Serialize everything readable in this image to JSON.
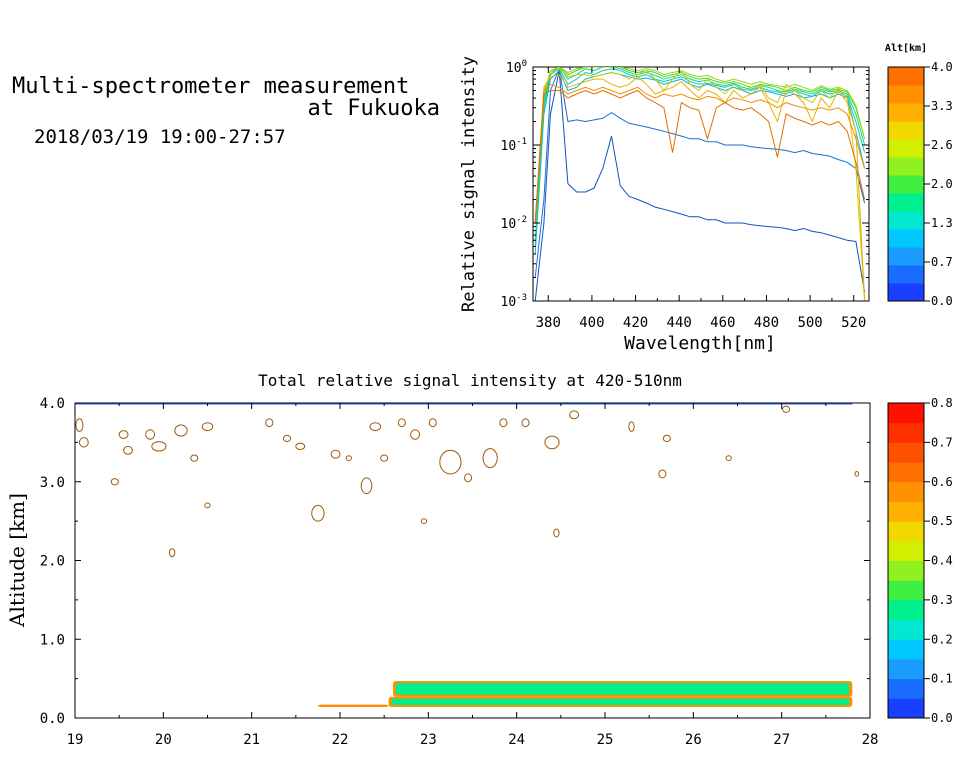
{
  "header": {
    "title_line1": "Multi-spectrometer measurement",
    "title_line2": "at Fukuoka",
    "subtitle": "2018/03/19 19:00-27:57"
  },
  "chart_data": [
    {
      "type": "line",
      "xlabel": "Wavelength[nm]",
      "ylabel": "Relative signal intensity",
      "yscale": "log",
      "xlim": [
        373,
        527
      ],
      "ylim": [
        0.001,
        1
      ],
      "x_ticks": [
        380,
        400,
        420,
        440,
        460,
        480,
        500,
        520
      ],
      "y_tick_labels": [
        {
          "value": 1,
          "base": "10",
          "exp": "0"
        },
        {
          "value": 0.1,
          "base": "10",
          "exp": "-1"
        },
        {
          "value": 0.01,
          "base": "10",
          "exp": "-2"
        },
        {
          "value": 0.001,
          "base": "10",
          "exp": "-3"
        }
      ],
      "x": [
        374,
        378,
        381,
        385,
        389,
        393,
        397,
        401,
        405,
        409,
        413,
        417,
        421,
        425,
        429,
        433,
        437,
        441,
        445,
        449,
        453,
        457,
        461,
        465,
        469,
        473,
        477,
        481,
        485,
        489,
        493,
        497,
        501,
        505,
        509,
        513,
        517,
        521,
        525
      ],
      "colorbar": {
        "title": "Alt[km]",
        "tick_labels": [
          "0.0",
          "0.7",
          "1.3",
          "2.0",
          "2.6",
          "3.3",
          "4.0"
        ],
        "colors": [
          "#1a40ff",
          "#1a6cff",
          "#1a9cff",
          "#00c8ff",
          "#00e8d0",
          "#00f090",
          "#40f040",
          "#90f020",
          "#d0f000",
          "#f0d800",
          "#ffb000",
          "#ff9000",
          "#ff7000"
        ]
      },
      "series": [
        {
          "alt": 0.2,
          "color": "#1450c0",
          "values": [
            0.001,
            0.01,
            0.25,
            0.9,
            0.032,
            0.025,
            0.025,
            0.028,
            0.05,
            0.13,
            0.03,
            0.022,
            0.02,
            0.018,
            0.016,
            0.015,
            0.014,
            0.013,
            0.012,
            0.012,
            0.011,
            0.011,
            0.01,
            0.01,
            0.01,
            0.0095,
            0.0092,
            0.009,
            0.0088,
            0.0085,
            0.008,
            0.0085,
            0.0078,
            0.0075,
            0.007,
            0.0065,
            0.006,
            0.0058,
            0.0013
          ]
        },
        {
          "alt": 0.4,
          "color": "#1470d0",
          "values": [
            0.002,
            0.02,
            0.5,
            0.95,
            0.2,
            0.21,
            0.2,
            0.21,
            0.22,
            0.26,
            0.22,
            0.19,
            0.18,
            0.17,
            0.16,
            0.15,
            0.14,
            0.13,
            0.12,
            0.12,
            0.11,
            0.11,
            0.1,
            0.1,
            0.1,
            0.095,
            0.092,
            0.09,
            0.088,
            0.085,
            0.08,
            0.085,
            0.078,
            0.075,
            0.072,
            0.065,
            0.06,
            0.05,
            0.018
          ]
        },
        {
          "alt": 1.5,
          "color": "#10b0d8",
          "values": [
            0.004,
            0.25,
            0.7,
            0.9,
            0.5,
            0.55,
            0.7,
            0.75,
            0.8,
            0.85,
            0.8,
            0.75,
            0.7,
            0.72,
            0.68,
            0.6,
            0.65,
            0.7,
            0.6,
            0.55,
            0.6,
            0.55,
            0.5,
            0.55,
            0.5,
            0.45,
            0.5,
            0.48,
            0.45,
            0.42,
            0.45,
            0.4,
            0.42,
            0.45,
            0.4,
            0.45,
            0.4,
            0.15,
            0.05
          ]
        },
        {
          "alt": 1.7,
          "color": "#10c8b0",
          "values": [
            0.005,
            0.3,
            0.8,
            0.95,
            0.6,
            0.7,
            0.85,
            0.8,
            0.9,
            0.95,
            0.9,
            0.8,
            0.75,
            0.8,
            0.7,
            0.65,
            0.7,
            0.75,
            0.65,
            0.6,
            0.62,
            0.58,
            0.55,
            0.6,
            0.52,
            0.5,
            0.55,
            0.5,
            0.48,
            0.45,
            0.5,
            0.45,
            0.42,
            0.5,
            0.45,
            0.48,
            0.42,
            0.2,
            0.08
          ]
        },
        {
          "alt": 1.9,
          "color": "#10d890",
          "values": [
            0.006,
            0.35,
            0.85,
            1.0,
            0.7,
            0.8,
            0.95,
            0.9,
            1.0,
            1.0,
            0.95,
            0.85,
            0.8,
            0.85,
            0.78,
            0.7,
            0.75,
            0.8,
            0.7,
            0.65,
            0.68,
            0.6,
            0.58,
            0.62,
            0.55,
            0.52,
            0.58,
            0.55,
            0.5,
            0.48,
            0.52,
            0.48,
            0.45,
            0.52,
            0.48,
            0.5,
            0.45,
            0.25,
            0.1
          ]
        },
        {
          "alt": 2.2,
          "color": "#40d830",
          "values": [
            0.01,
            0.4,
            0.9,
            1.0,
            0.8,
            0.9,
            1.0,
            1.0,
            1.0,
            1.0,
            1.0,
            0.9,
            0.85,
            0.9,
            0.85,
            0.75,
            0.8,
            0.85,
            0.75,
            0.7,
            0.72,
            0.65,
            0.62,
            0.65,
            0.6,
            0.55,
            0.6,
            0.58,
            0.55,
            0.5,
            0.55,
            0.5,
            0.48,
            0.55,
            0.5,
            0.52,
            0.48,
            0.3,
            0.12
          ]
        },
        {
          "alt": 2.5,
          "color": "#90d810",
          "values": [
            0.01,
            0.45,
            0.9,
            1.0,
            0.85,
            0.95,
            1.0,
            1.0,
            1.0,
            1.0,
            1.0,
            0.95,
            0.9,
            0.95,
            0.9,
            0.8,
            0.85,
            0.9,
            0.8,
            0.75,
            0.78,
            0.7,
            0.65,
            0.7,
            0.65,
            0.6,
            0.65,
            0.6,
            0.58,
            0.55,
            0.6,
            0.55,
            0.5,
            0.58,
            0.52,
            0.55,
            0.5,
            0.32,
            0.12
          ]
        },
        {
          "alt": 2.8,
          "color": "#d0c800",
          "values": [
            0.01,
            0.5,
            0.85,
            0.95,
            0.75,
            0.8,
            0.8,
            0.75,
            0.8,
            0.85,
            0.8,
            0.7,
            0.8,
            0.9,
            0.7,
            0.5,
            0.7,
            0.9,
            0.6,
            0.5,
            0.7,
            0.55,
            0.45,
            0.6,
            0.5,
            0.55,
            0.6,
            0.4,
            0.35,
            0.6,
            0.5,
            0.4,
            0.35,
            0.5,
            0.4,
            0.55,
            0.4,
            0.05,
            0.001
          ]
        },
        {
          "alt": 3.0,
          "color": "#e8b000",
          "values": [
            0.01,
            0.55,
            0.75,
            0.8,
            0.55,
            0.6,
            0.65,
            0.7,
            0.7,
            0.6,
            0.55,
            0.6,
            0.75,
            0.6,
            0.45,
            0.5,
            0.55,
            0.65,
            0.5,
            0.4,
            0.5,
            0.45,
            0.35,
            0.5,
            0.4,
            0.45,
            0.55,
            0.35,
            0.2,
            0.5,
            0.45,
            0.35,
            0.2,
            0.4,
            0.3,
            0.5,
            0.35,
            0.15,
            0.001
          ]
        },
        {
          "alt": 3.4,
          "color": "#f09000",
          "values": [
            0.01,
            0.5,
            0.6,
            0.55,
            0.45,
            0.5,
            0.55,
            0.5,
            0.55,
            0.5,
            0.45,
            0.5,
            0.55,
            0.45,
            0.4,
            0.45,
            0.42,
            0.45,
            0.4,
            0.38,
            0.42,
            0.4,
            0.35,
            0.4,
            0.38,
            0.35,
            0.38,
            0.35,
            0.3,
            0.35,
            0.32,
            0.3,
            0.28,
            0.3,
            0.28,
            0.3,
            0.25,
            0.12,
            0.05
          ]
        },
        {
          "alt": 3.7,
          "color": "#e07000",
          "values": [
            0.01,
            0.45,
            0.5,
            0.5,
            0.4,
            0.45,
            0.5,
            0.45,
            0.5,
            0.45,
            0.4,
            0.45,
            0.5,
            0.4,
            0.35,
            0.3,
            0.08,
            0.35,
            0.3,
            0.28,
            0.12,
            0.3,
            0.35,
            0.3,
            0.28,
            0.3,
            0.25,
            0.2,
            0.07,
            0.25,
            0.22,
            0.2,
            0.18,
            0.2,
            0.18,
            0.2,
            0.15,
            0.06,
            0.02
          ]
        }
      ]
    },
    {
      "type": "heatmap",
      "title": "Total relative signal intensity at 420-510nm",
      "ylabel": "Altitude [km]",
      "xlim": [
        19,
        28
      ],
      "ylim": [
        0,
        4
      ],
      "x_ticks": [
        19,
        20,
        21,
        22,
        23,
        24,
        25,
        26,
        27,
        28
      ],
      "y_tick_labels": [
        "0.0",
        "1.0",
        "2.0",
        "3.0",
        "4.0"
      ],
      "colorbar": {
        "tick_labels": [
          "0.0",
          "0.1",
          "0.2",
          "0.3",
          "0.4",
          "0.5",
          "0.6",
          "0.7",
          "0.8"
        ],
        "colors": [
          "#1a40ff",
          "#1a6cff",
          "#1a9cff",
          "#00c8ff",
          "#00e8d0",
          "#00f090",
          "#40f040",
          "#90f020",
          "#d0f000",
          "#f0d800",
          "#ffb000",
          "#ff9000",
          "#ff7000",
          "#ff5000",
          "#ff3000",
          "#ff1000"
        ]
      },
      "ceiling_altitude": 3.99,
      "bands": [
        {
          "x_start": 21.75,
          "x_end": 22.55,
          "alt_low": 0.14,
          "alt_high": 0.17,
          "value": 0.55
        },
        {
          "x_start": 22.55,
          "x_end": 27.8,
          "alt_low": 0.14,
          "alt_high": 0.27,
          "value": 0.3
        },
        {
          "x_start": 22.6,
          "x_end": 27.8,
          "alt_low": 0.27,
          "alt_high": 0.47,
          "value": 0.28
        }
      ],
      "patches": [
        [
          19.05,
          3.72,
          0.04,
          0.08
        ],
        [
          19.1,
          3.5,
          0.05,
          0.06
        ],
        [
          19.55,
          3.6,
          0.05,
          0.05
        ],
        [
          19.45,
          3.0,
          0.04,
          0.04
        ],
        [
          19.6,
          3.4,
          0.05,
          0.05
        ],
        [
          19.85,
          3.6,
          0.05,
          0.06
        ],
        [
          19.95,
          3.45,
          0.08,
          0.06
        ],
        [
          20.2,
          3.65,
          0.07,
          0.07
        ],
        [
          20.5,
          3.7,
          0.06,
          0.05
        ],
        [
          20.35,
          3.3,
          0.04,
          0.04
        ],
        [
          20.1,
          2.1,
          0.03,
          0.05
        ],
        [
          20.5,
          2.7,
          0.03,
          0.03
        ],
        [
          21.2,
          3.75,
          0.04,
          0.05
        ],
        [
          21.4,
          3.55,
          0.04,
          0.04
        ],
        [
          21.55,
          3.45,
          0.05,
          0.04
        ],
        [
          21.75,
          2.6,
          0.07,
          0.1
        ],
        [
          21.95,
          3.35,
          0.05,
          0.05
        ],
        [
          22.1,
          3.3,
          0.03,
          0.03
        ],
        [
          22.3,
          2.95,
          0.06,
          0.1
        ],
        [
          22.4,
          3.7,
          0.06,
          0.05
        ],
        [
          22.5,
          3.3,
          0.04,
          0.04
        ],
        [
          22.7,
          3.75,
          0.04,
          0.05
        ],
        [
          22.85,
          3.6,
          0.05,
          0.06
        ],
        [
          22.95,
          2.5,
          0.03,
          0.03
        ],
        [
          23.05,
          3.75,
          0.04,
          0.05
        ],
        [
          23.25,
          3.25,
          0.12,
          0.15
        ],
        [
          23.45,
          3.05,
          0.04,
          0.05
        ],
        [
          23.7,
          3.3,
          0.08,
          0.12
        ],
        [
          23.85,
          3.75,
          0.04,
          0.05
        ],
        [
          24.1,
          3.75,
          0.04,
          0.05
        ],
        [
          24.4,
          3.5,
          0.08,
          0.08
        ],
        [
          24.45,
          2.35,
          0.03,
          0.05
        ],
        [
          24.65,
          3.85,
          0.05,
          0.05
        ],
        [
          25.3,
          3.7,
          0.03,
          0.06
        ],
        [
          25.7,
          3.55,
          0.04,
          0.04
        ],
        [
          25.65,
          3.1,
          0.04,
          0.05
        ],
        [
          26.4,
          3.3,
          0.03,
          0.03
        ],
        [
          27.05,
          3.92,
          0.04,
          0.04
        ],
        [
          27.85,
          3.1,
          0.02,
          0.03
        ]
      ]
    }
  ]
}
